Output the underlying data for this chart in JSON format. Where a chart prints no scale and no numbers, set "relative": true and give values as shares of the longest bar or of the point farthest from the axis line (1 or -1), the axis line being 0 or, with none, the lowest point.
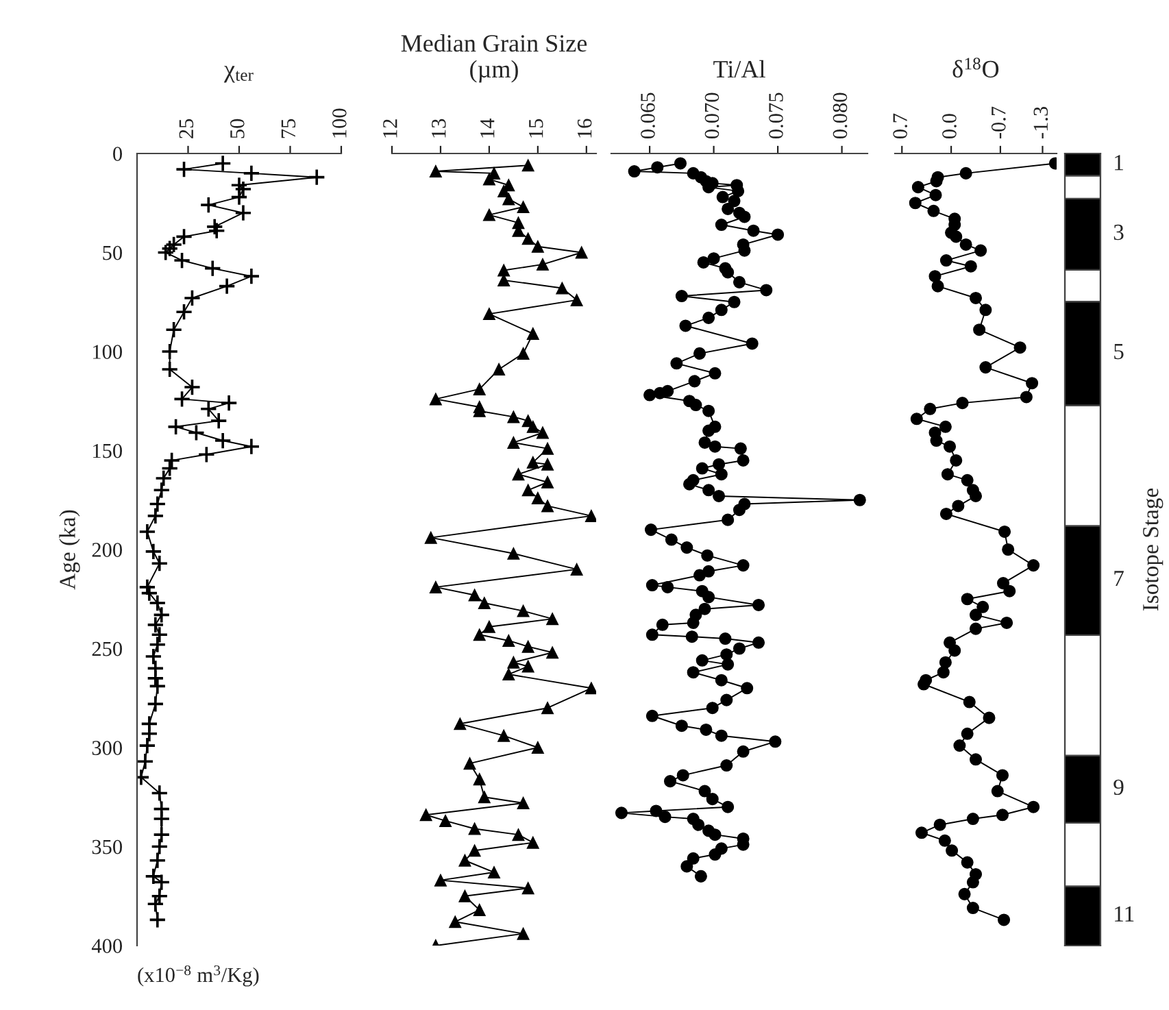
{
  "chart_data": [
    {
      "type": "line",
      "title": "χ$_{ter}$",
      "xlabel": "(x10$^{−8}$ m$^{3}$/Kg)",
      "ylabel": "Age (ka)",
      "marker": "cross",
      "grid": false,
      "xlim": [
        0,
        100
      ],
      "xticks": [
        25,
        50,
        75,
        100
      ],
      "ylim": [
        400,
        0
      ],
      "yticks": [
        0,
        50,
        100,
        150,
        200,
        250,
        300,
        350,
        400
      ],
      "series": [
        {
          "color": "#000000",
          "x": [
            42,
            23,
            56,
            88,
            50,
            52,
            50,
            35,
            52,
            38,
            39,
            23,
            18,
            16,
            14,
            22,
            37,
            56,
            44,
            27,
            23,
            18,
            16,
            16,
            27,
            22,
            45,
            35,
            40,
            19,
            29,
            42,
            56,
            34,
            17,
            16,
            13,
            12,
            10,
            9,
            5,
            8,
            11,
            5,
            6,
            10,
            12,
            9,
            11,
            10,
            8,
            9,
            9,
            10,
            9,
            6,
            6,
            5,
            4,
            2,
            11,
            12,
            12,
            12,
            11,
            10,
            8,
            12,
            11,
            9,
            10
          ],
          "values": [
            5,
            8,
            10,
            12,
            16,
            18,
            22,
            26,
            30,
            37,
            39,
            42,
            46,
            48,
            50,
            54,
            58,
            62,
            67,
            73,
            80,
            89,
            100,
            109,
            118,
            124,
            126,
            129,
            135,
            138,
            141,
            145,
            148,
            152,
            155,
            159,
            164,
            170,
            177,
            183,
            191,
            201,
            207,
            219,
            222,
            227,
            233,
            238,
            243,
            248,
            254,
            260,
            265,
            269,
            278,
            288,
            293,
            299,
            307,
            315,
            323,
            331,
            336,
            344,
            350,
            357,
            365,
            368,
            375,
            379,
            387
          ]
        }
      ]
    },
    {
      "type": "line",
      "title": "Median Grain Size\n(µm)",
      "marker": "triangle",
      "grid": false,
      "tick_labels": "x",
      "xlim": [
        12,
        16.2
      ],
      "xticks": [
        12,
        13,
        14,
        15,
        16
      ],
      "ylim": [
        400,
        0
      ],
      "series": [
        {
          "color": "#000000",
          "x": [
            14.8,
            12.9,
            14.1,
            14.0,
            14.4,
            14.3,
            14.4,
            14.7,
            14.0,
            14.6,
            14.6,
            14.8,
            15.0,
            15.9,
            15.1,
            14.3,
            14.3,
            15.5,
            15.8,
            14.0,
            14.9,
            14.7,
            14.2,
            13.8,
            12.9,
            13.8,
            13.8,
            14.5,
            14.8,
            14.9,
            15.1,
            14.5,
            15.2,
            14.9,
            15.2,
            14.6,
            15.2,
            14.8,
            15.0,
            15.2,
            16.1,
            12.8,
            14.5,
            15.8,
            12.9,
            13.7,
            13.9,
            14.7,
            15.3,
            14.0,
            13.8,
            14.4,
            14.8,
            15.3,
            14.5,
            14.8,
            14.4,
            16.1,
            15.2,
            13.4,
            14.3,
            15.0,
            13.6,
            13.8,
            13.9,
            14.7,
            12.7,
            13.1,
            13.7,
            14.6,
            14.9,
            13.7,
            13.5,
            14.1,
            13.0,
            14.8,
            13.5,
            13.8,
            13.3,
            14.7,
            12.9
          ],
          "values": [
            6,
            9,
            10,
            13,
            16,
            19,
            23,
            27,
            31,
            35,
            39,
            43,
            47,
            50,
            56,
            59,
            64,
            68,
            74,
            81,
            91,
            101,
            109,
            119,
            124,
            128,
            130,
            133,
            135,
            138,
            141,
            146,
            149,
            156,
            157,
            162,
            166,
            170,
            174,
            178,
            183,
            194,
            202,
            210,
            219,
            223,
            227,
            231,
            235,
            239,
            243,
            246,
            249,
            252,
            257,
            259,
            263,
            270,
            280,
            288,
            294,
            300,
            308,
            316,
            325,
            328,
            334,
            337,
            341,
            344,
            348,
            352,
            357,
            363,
            367,
            371,
            375,
            382,
            388,
            394,
            400
          ]
        }
      ]
    },
    {
      "type": "line",
      "title": "Ti/Al",
      "marker": "circle",
      "grid": false,
      "tick_labels": "x",
      "xlim": [
        0.062,
        0.082
      ],
      "xticks": [
        0.065,
        {
          "value": 0.07,
          "label": "0.070"
        },
        0.075,
        {
          "value": 0.08,
          "label": "0.080"
        }
      ],
      "ylim": [
        400,
        0
      ],
      "series": [
        {
          "color": "#000000",
          "x": [
            0.0674,
            0.0656,
            0.0638,
            0.0684,
            0.069,
            0.0694,
            0.0699,
            0.0718,
            0.0696,
            0.0719,
            0.0707,
            0.0716,
            0.0711,
            0.072,
            0.0724,
            0.0706,
            0.0731,
            0.075,
            0.0723,
            0.0724,
            0.07,
            0.0692,
            0.0709,
            0.0711,
            0.072,
            0.0741,
            0.0675,
            0.0716,
            0.0706,
            0.0696,
            0.0678,
            0.073,
            0.0689,
            0.0671,
            0.0701,
            0.0685,
            0.0664,
            0.0658,
            0.065,
            0.0681,
            0.0686,
            0.0696,
            0.0701,
            0.0696,
            0.0693,
            0.0701,
            0.0721,
            0.0723,
            0.0704,
            0.0691,
            0.0706,
            0.0684,
            0.0681,
            0.0696,
            0.0704,
            0.0814,
            0.0724,
            0.072,
            0.0711,
            0.0651,
            0.0667,
            0.0679,
            0.0695,
            0.0723,
            0.0696,
            0.0689,
            0.0652,
            0.0664,
            0.0691,
            0.0696,
            0.0735,
            0.0693,
            0.0686,
            0.0684,
            0.066,
            0.0652,
            0.0683,
            0.0709,
            0.0735,
            0.072,
            0.071,
            0.0691,
            0.0711,
            0.0684,
            0.0706,
            0.0726,
            0.071,
            0.0699,
            0.0652,
            0.0675,
            0.0694,
            0.0706,
            0.0748,
            0.0723,
            0.071,
            0.0676,
            0.0666,
            0.0693,
            0.0699,
            0.0711,
            0.0655,
            0.0628,
            0.0662,
            0.0684,
            0.0688,
            0.0696,
            0.0701,
            0.0723,
            0.0723,
            0.0706,
            0.0701,
            0.0684,
            0.0679,
            0.069
          ],
          "values": [
            5,
            7,
            9,
            10,
            12,
            14,
            15,
            16,
            17,
            19,
            22,
            24,
            28,
            30,
            32,
            36,
            39,
            41,
            46,
            49,
            53,
            55,
            58,
            60,
            65,
            69,
            72,
            75,
            79,
            83,
            87,
            96,
            101,
            106,
            111,
            115,
            120,
            121,
            122,
            125,
            127,
            130,
            138,
            140,
            146,
            148,
            149,
            155,
            157,
            159,
            162,
            165,
            167,
            170,
            173,
            175,
            177,
            180,
            185,
            190,
            195,
            199,
            203,
            208,
            211,
            213,
            218,
            219,
            221,
            224,
            228,
            230,
            233,
            237,
            238,
            243,
            244,
            245,
            247,
            250,
            253,
            256,
            258,
            262,
            266,
            270,
            276,
            280,
            284,
            289,
            291,
            294,
            297,
            302,
            309,
            314,
            317,
            322,
            326,
            330,
            332,
            333,
            335,
            336,
            339,
            342,
            344,
            346,
            349,
            351,
            354,
            356,
            360,
            365
          ]
        }
      ]
    },
    {
      "type": "line",
      "title": "δ$^{18}$O",
      "marker": "circle",
      "grid": false,
      "tick_labels": "x",
      "xlim": [
        0.8,
        -1.5
      ],
      "xticks": [
        0.7,
        {
          "value": 0,
          "label": "0.0"
        },
        -0.7,
        -1.3
      ],
      "ylim": [
        400,
        0
      ],
      "series": [
        {
          "color": "#000000",
          "x": [
            -1.48,
            -0.21,
            0.19,
            0.21,
            0.47,
            0.22,
            0.51,
            0.25,
            -0.05,
            -0.05,
            0.0,
            -0.07,
            -0.21,
            -0.42,
            0.07,
            -0.28,
            0.23,
            0.19,
            -0.35,
            -0.49,
            -0.4,
            -0.98,
            -0.49,
            -1.15,
            -1.07,
            -0.16,
            0.3,
            0.49,
            0.08,
            0.23,
            0.21,
            0.02,
            -0.07,
            0.05,
            -0.23,
            -0.31,
            -0.35,
            -0.1,
            0.07,
            -0.76,
            -0.81,
            -1.17,
            -0.74,
            -0.83,
            -0.23,
            -0.45,
            -0.35,
            -0.79,
            -0.35,
            0.02,
            -0.05,
            0.08,
            0.11,
            0.36,
            0.39,
            -0.26,
            -0.54,
            -0.23,
            -0.12,
            -0.35,
            -0.73,
            -0.66,
            -1.17,
            -0.73,
            -0.31,
            0.16,
            0.42,
            0.09,
            -0.01,
            -0.23,
            -0.35,
            -0.31,
            -0.19,
            -0.31,
            -0.75
          ],
          "values": [
            5,
            10,
            12,
            14,
            17,
            21,
            25,
            29,
            33,
            36,
            40,
            42,
            46,
            49,
            54,
            57,
            62,
            67,
            73,
            79,
            89,
            98,
            108,
            116,
            123,
            126,
            129,
            134,
            138,
            141,
            145,
            148,
            155,
            162,
            165,
            170,
            173,
            178,
            182,
            191,
            200,
            208,
            217,
            221,
            225,
            229,
            233,
            237,
            240,
            247,
            251,
            257,
            262,
            266,
            268,
            277,
            285,
            293,
            299,
            306,
            314,
            322,
            330,
            334,
            336,
            339,
            343,
            347,
            352,
            358,
            364,
            368,
            374,
            381,
            387
          ]
        }
      ]
    },
    {
      "type": "bar",
      "stacked": true,
      "relative": true,
      "ylabel": "Isotope Stage",
      "categories": [
        null
      ],
      "series": [
        {
          "name": "11",
          "color": "#000000",
          "values": [
            0.075
          ]
        },
        {
          "color": "#ffffff",
          "values": [
            0.08
          ]
        },
        {
          "name": "9",
          "color": "#000000",
          "values": [
            0.085
          ]
        },
        {
          "color": "#ffffff",
          "values": [
            0.152
          ]
        },
        {
          "name": "7",
          "color": "#000000",
          "values": [
            0.138
          ]
        },
        {
          "color": "#ffffff",
          "values": [
            0.152
          ]
        },
        {
          "name": "5",
          "color": "#000000",
          "values": [
            0.131
          ]
        },
        {
          "color": "#ffffff",
          "values": [
            0.04
          ]
        },
        {
          "name": "3",
          "color": "#000000",
          "values": [
            0.09
          ]
        },
        {
          "color": "#ffffff",
          "values": [
            0.029
          ]
        },
        {
          "name": "1",
          "color": "#000000",
          "values": [
            0.028
          ]
        }
      ]
    }
  ]
}
